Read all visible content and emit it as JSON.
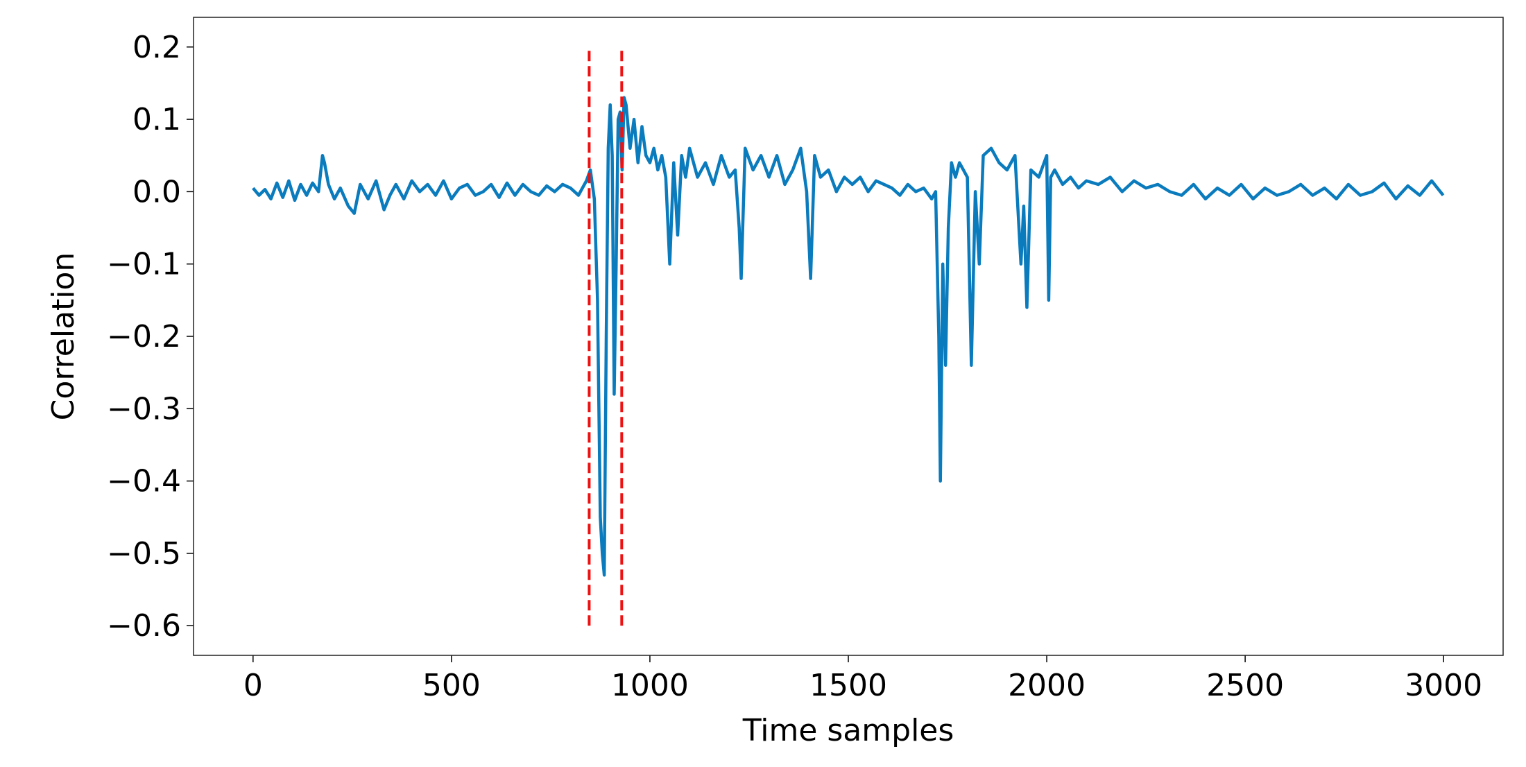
{
  "chart_data": {
    "type": "line",
    "xlabel": "Time samples",
    "ylabel": "Correlation",
    "xlim": [
      -150,
      3150
    ],
    "ylim": [
      -0.641,
      0.241
    ],
    "xticks": [
      0,
      500,
      1000,
      1500,
      2000,
      2500,
      3000
    ],
    "yticks": [
      {
        "value": -0.6,
        "label": "−0.6"
      },
      {
        "value": -0.5,
        "label": "−0.5"
      },
      {
        "value": -0.4,
        "label": "−0.4"
      },
      {
        "value": -0.3,
        "label": "−0.3"
      },
      {
        "value": -0.2,
        "label": "−0.2"
      },
      {
        "value": -0.1,
        "label": "−0.1"
      },
      {
        "value": 0,
        "label": "0.0"
      },
      0.1,
      0.2
    ],
    "grid": false,
    "series": [
      {
        "color": "#0a7bbd",
        "x": [
          0,
          15,
          30,
          45,
          60,
          75,
          90,
          105,
          120,
          135,
          150,
          165,
          175,
          180,
          190,
          205,
          220,
          240,
          255,
          270,
          290,
          310,
          330,
          345,
          360,
          380,
          400,
          420,
          440,
          460,
          480,
          500,
          520,
          540,
          560,
          580,
          600,
          620,
          640,
          660,
          680,
          700,
          720,
          740,
          760,
          780,
          800,
          820,
          840,
          850,
          860,
          868,
          875,
          880,
          885,
          890,
          895,
          900,
          905,
          910,
          915,
          920,
          925,
          930,
          935,
          940,
          950,
          960,
          970,
          980,
          990,
          1000,
          1010,
          1020,
          1030,
          1040,
          1050,
          1060,
          1070,
          1080,
          1090,
          1100,
          1120,
          1140,
          1160,
          1180,
          1200,
          1215,
          1225,
          1230,
          1240,
          1260,
          1280,
          1300,
          1320,
          1340,
          1360,
          1380,
          1395,
          1405,
          1415,
          1430,
          1450,
          1470,
          1490,
          1510,
          1530,
          1550,
          1570,
          1590,
          1610,
          1630,
          1650,
          1670,
          1690,
          1710,
          1720,
          1728,
          1732,
          1738,
          1745,
          1752,
          1760,
          1770,
          1780,
          1790,
          1800,
          1810,
          1820,
          1830,
          1840,
          1860,
          1880,
          1900,
          1920,
          1935,
          1942,
          1950,
          1960,
          1980,
          2000,
          2005,
          2010,
          2020,
          2040,
          2060,
          2080,
          2100,
          2130,
          2160,
          2190,
          2220,
          2250,
          2280,
          2310,
          2340,
          2370,
          2400,
          2430,
          2460,
          2490,
          2520,
          2550,
          2580,
          2610,
          2640,
          2670,
          2700,
          2730,
          2760,
          2790,
          2820,
          2850,
          2880,
          2910,
          2940,
          2970,
          2999
        ],
        "values": [
          0.005,
          -0.005,
          0.003,
          -0.01,
          0.012,
          -0.008,
          0.015,
          -0.012,
          0.01,
          -0.005,
          0.012,
          0.0,
          0.05,
          0.04,
          0.01,
          -0.01,
          0.005,
          -0.02,
          -0.03,
          0.01,
          -0.01,
          0.015,
          -0.025,
          -0.005,
          0.01,
          -0.01,
          0.015,
          0.0,
          0.01,
          -0.005,
          0.015,
          -0.01,
          0.005,
          0.01,
          -0.005,
          0.0,
          0.01,
          -0.008,
          0.012,
          -0.005,
          0.01,
          0.0,
          -0.005,
          0.008,
          0.0,
          0.01,
          0.005,
          -0.005,
          0.015,
          0.03,
          -0.01,
          -0.15,
          -0.45,
          -0.5,
          -0.53,
          -0.2,
          0.06,
          0.12,
          0.05,
          -0.28,
          -0.1,
          0.1,
          0.11,
          0.03,
          0.13,
          0.12,
          0.06,
          0.1,
          0.04,
          0.09,
          0.05,
          0.04,
          0.06,
          0.03,
          0.05,
          0.02,
          -0.1,
          0.04,
          -0.06,
          0.05,
          0.02,
          0.06,
          0.02,
          0.04,
          0.01,
          0.05,
          0.02,
          0.03,
          -0.05,
          -0.12,
          0.06,
          0.03,
          0.05,
          0.02,
          0.05,
          0.01,
          0.03,
          0.06,
          0.0,
          -0.12,
          0.05,
          0.02,
          0.03,
          0.0,
          0.02,
          0.01,
          0.02,
          0.0,
          0.015,
          0.01,
          0.005,
          -0.005,
          0.01,
          0.0,
          0.005,
          -0.01,
          0.0,
          -0.2,
          -0.4,
          -0.1,
          -0.24,
          -0.05,
          0.04,
          0.02,
          0.04,
          0.03,
          0.02,
          -0.24,
          0.0,
          -0.1,
          0.05,
          0.06,
          0.04,
          0.03,
          0.05,
          -0.1,
          -0.02,
          -0.16,
          0.03,
          0.02,
          0.05,
          -0.15,
          0.02,
          0.03,
          0.01,
          0.02,
          0.005,
          0.015,
          0.01,
          0.02,
          0.0,
          0.015,
          0.005,
          0.01,
          0.0,
          -0.005,
          0.01,
          -0.01,
          0.005,
          -0.005,
          0.01,
          -0.01,
          0.005,
          -0.005,
          0.0,
          0.01,
          -0.005,
          0.005,
          -0.01,
          0.01,
          -0.005,
          0.0,
          0.012,
          -0.01,
          0.008,
          -0.005,
          0.015,
          -0.005
        ]
      }
    ],
    "vlines": [
      {
        "x": 847,
        "ymin": -0.6,
        "ymax": 0.2,
        "color": "#ee1111"
      },
      {
        "x": 929,
        "ymin": -0.6,
        "ymax": 0.2,
        "color": "#ee1111"
      }
    ]
  }
}
